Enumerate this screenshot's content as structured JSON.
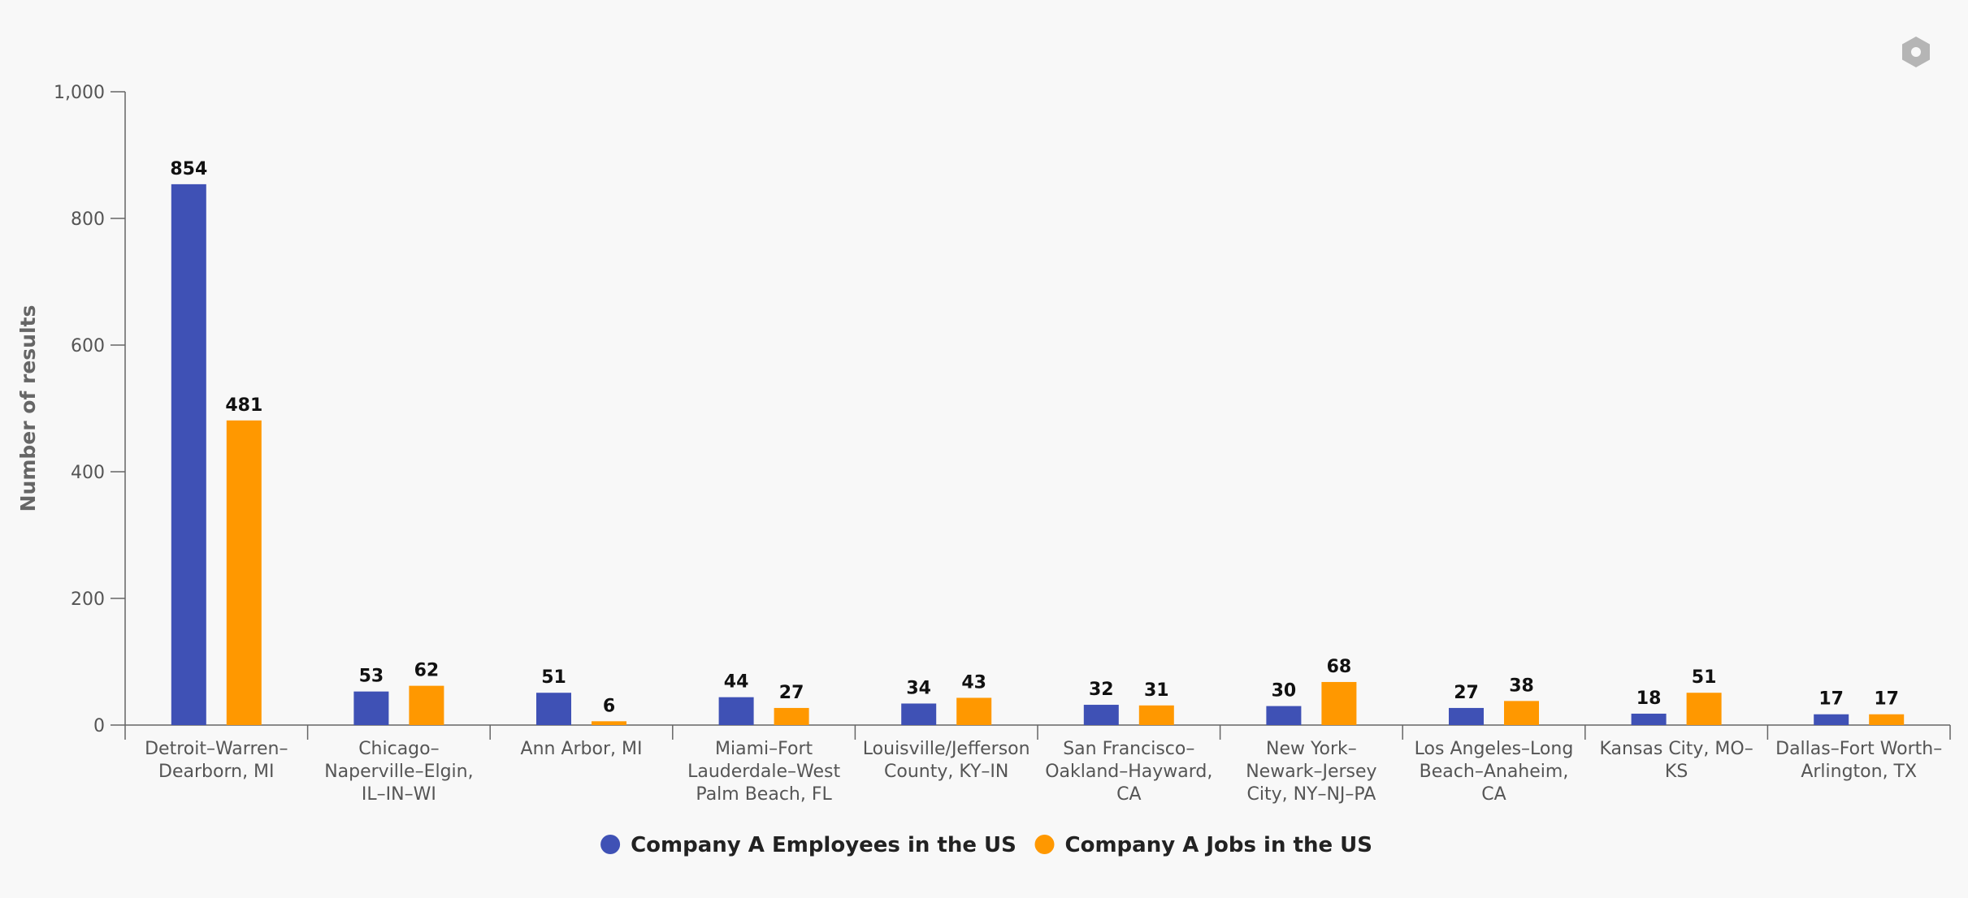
{
  "chart_data": {
    "type": "bar",
    "title": "",
    "xlabel": "",
    "ylabel": "Number of results",
    "ylim": [
      0,
      1000
    ],
    "yticks": [
      0,
      200,
      400,
      600,
      800,
      1000
    ],
    "ytick_labels": [
      "0",
      "200",
      "400",
      "600",
      "800",
      "1,000"
    ],
    "categories": [
      [
        "Detroit–Warren–",
        "Dearborn, MI"
      ],
      [
        "Chicago–",
        "Naperville–Elgin,",
        "IL–IN–WI"
      ],
      [
        "Ann Arbor, MI"
      ],
      [
        "Miami–Fort",
        "Lauderdale–West",
        "Palm Beach, FL"
      ],
      [
        "Louisville/Jefferson",
        "County, KY–IN"
      ],
      [
        "San Francisco–",
        "Oakland–Hayward,",
        "CA"
      ],
      [
        "New York–",
        "Newark–Jersey",
        "City, NY–NJ–PA"
      ],
      [
        "Los Angeles–Long",
        "Beach–Anaheim,",
        "CA"
      ],
      [
        "Kansas City, MO–",
        "KS"
      ],
      [
        "Dallas–Fort Worth–",
        "Arlington, TX"
      ]
    ],
    "series": [
      {
        "name": "Company A Employees in the US",
        "color": "#3f51b5",
        "values": [
          854,
          53,
          51,
          44,
          34,
          32,
          30,
          27,
          18,
          17
        ]
      },
      {
        "name": "Company A Jobs in the US",
        "color": "#ff9800",
        "values": [
          481,
          62,
          6,
          27,
          43,
          31,
          68,
          38,
          51,
          17
        ]
      }
    ],
    "data_labels": true,
    "legend": "bottom-center",
    "grid": false
  },
  "toolbar": {
    "settings_icon": "settings-hexagon-icon"
  },
  "colors": {
    "axis": "#666666",
    "background": "#f8f8f8",
    "settings_icon": "#b5b5b5"
  }
}
